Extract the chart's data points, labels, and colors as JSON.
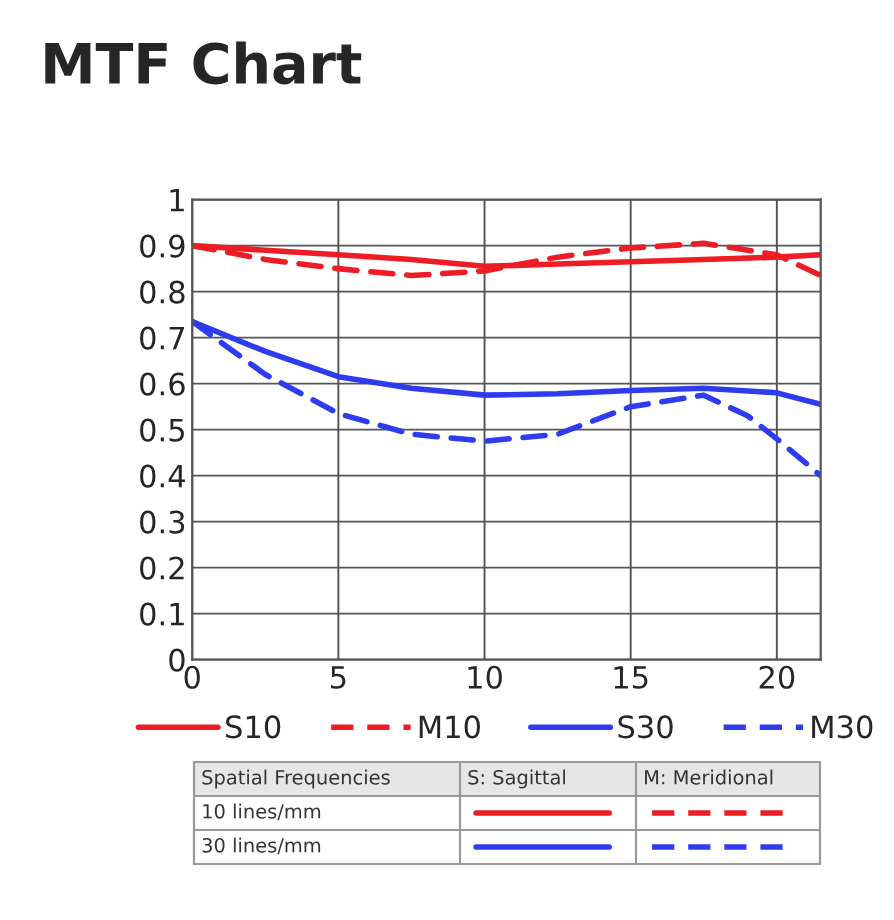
{
  "chart_data": {
    "type": "line",
    "title": "MTF Chart",
    "xlim": [
      0,
      21.5
    ],
    "xticks": [
      0,
      5,
      10,
      15,
      20
    ],
    "ylim": [
      0,
      1
    ],
    "yticks": [
      0,
      0.1,
      0.2,
      0.3,
      0.4,
      0.5,
      0.6,
      0.7,
      0.8,
      0.9,
      1
    ],
    "grid": true,
    "legend": "bottom",
    "marker": "none",
    "series": [
      {
        "name": "S10",
        "color": "#ee1c25",
        "line_style": "solid",
        "x": [
          0,
          2.5,
          5,
          7.5,
          10,
          12.5,
          15,
          17.5,
          20,
          21.5
        ],
        "values": [
          0.9,
          0.89,
          0.88,
          0.87,
          0.855,
          0.86,
          0.865,
          0.87,
          0.875,
          0.88
        ]
      },
      {
        "name": "M10",
        "color": "#ee1c25",
        "line_style": "dashed",
        "x": [
          0,
          2.5,
          5,
          7.5,
          10,
          12.5,
          15,
          17.5,
          20,
          21.5
        ],
        "values": [
          0.9,
          0.87,
          0.85,
          0.835,
          0.845,
          0.875,
          0.895,
          0.905,
          0.88,
          0.835
        ]
      },
      {
        "name": "S30",
        "color": "#2e3cf0",
        "line_style": "solid",
        "x": [
          0,
          2.5,
          5,
          7.5,
          10,
          12.5,
          15,
          17.5,
          20,
          21.5
        ],
        "values": [
          0.735,
          0.67,
          0.615,
          0.59,
          0.575,
          0.578,
          0.585,
          0.59,
          0.58,
          0.555
        ]
      },
      {
        "name": "M30",
        "color": "#2e3cf0",
        "line_style": "dashed",
        "x": [
          0,
          2.5,
          5,
          7.5,
          10,
          12.5,
          15,
          17.5,
          19,
          20,
          21.5
        ],
        "values": [
          0.735,
          0.62,
          0.535,
          0.49,
          0.475,
          0.49,
          0.55,
          0.575,
          0.53,
          0.48,
          0.4
        ]
      }
    ],
    "annotations": [
      "Spatial Frequencies",
      "S: Sagittal",
      "M: Meridional",
      "10 lines/mm",
      "30 lines/mm"
    ]
  }
}
